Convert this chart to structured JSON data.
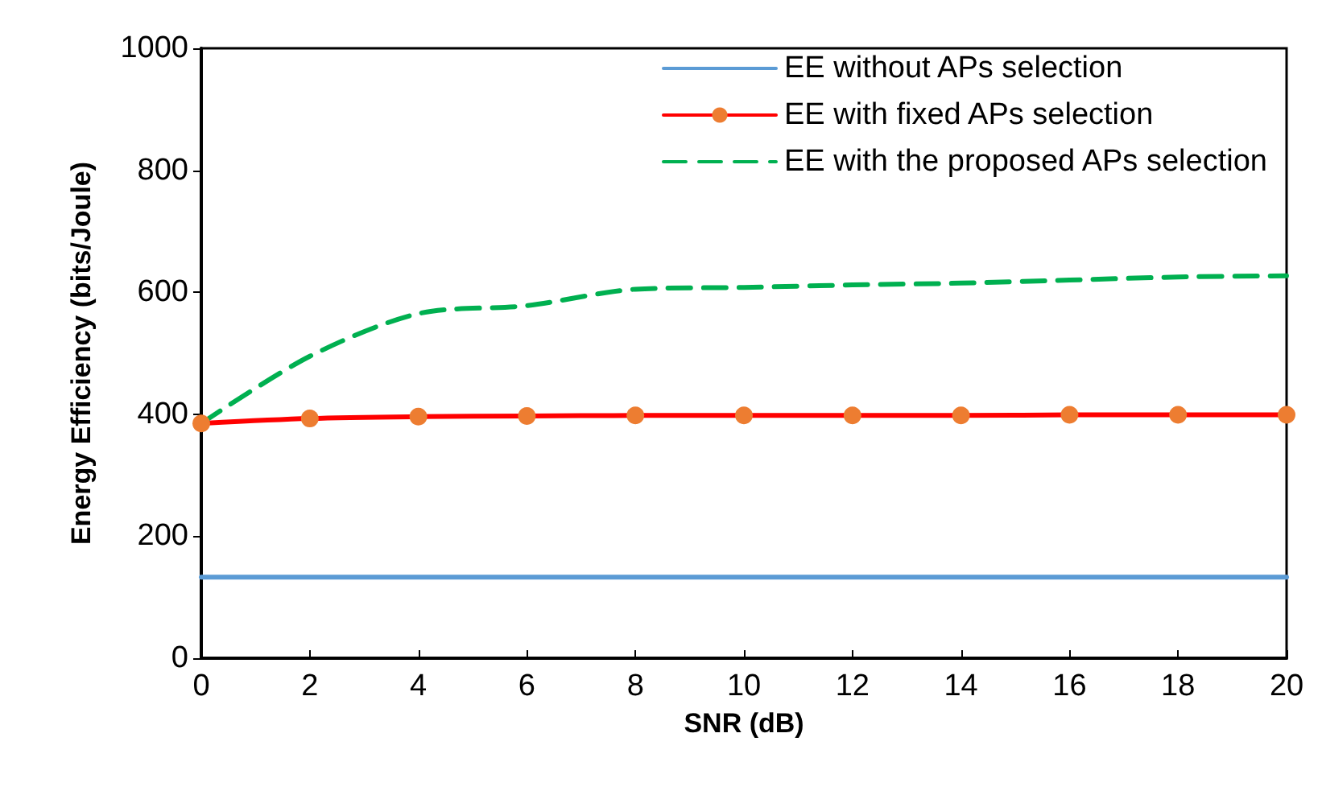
{
  "chart_data": {
    "type": "line",
    "xlabel": "SNR (dB)",
    "ylabel": "Energy Efficiency (bits/Joule)",
    "x": [
      0,
      2,
      4,
      6,
      8,
      10,
      12,
      14,
      16,
      18,
      20
    ],
    "xlim": [
      0,
      20
    ],
    "xticks": [
      0,
      2,
      4,
      6,
      8,
      10,
      12,
      14,
      16,
      18,
      20
    ],
    "ylim": [
      0,
      1000
    ],
    "yticks": [
      0,
      200,
      400,
      600,
      800,
      1000
    ],
    "grid": false,
    "legend": "top right",
    "series": [
      {
        "name": "EE without APs selection",
        "color": "#5b9bd5",
        "marker": "none",
        "line_style": "solid",
        "values": [
          133,
          133,
          133,
          133,
          133,
          133,
          133,
          133,
          133,
          133,
          133
        ]
      },
      {
        "name": "EE with fixed APs selection",
        "color": "#ff0000",
        "marker": "circle",
        "colors": [
          "#ed7d31",
          "#ed7d31",
          "#ed7d31",
          "#ed7d31",
          "#ed7d31",
          "#ed7d31",
          "#ed7d31",
          "#ed7d31",
          "#ed7d31",
          "#ed7d31",
          "#ed7d31"
        ],
        "line_style": "solid",
        "values": [
          385,
          393,
          396,
          397,
          398,
          398,
          398,
          398,
          399,
          399,
          399
        ]
      },
      {
        "name": "EE with the proposed APs selection",
        "color": "#00b050",
        "marker": "none",
        "line_style": "dashed",
        "values": [
          385,
          495,
          565,
          578,
          605,
          608,
          612,
          615,
          620,
          625,
          627
        ]
      }
    ]
  }
}
